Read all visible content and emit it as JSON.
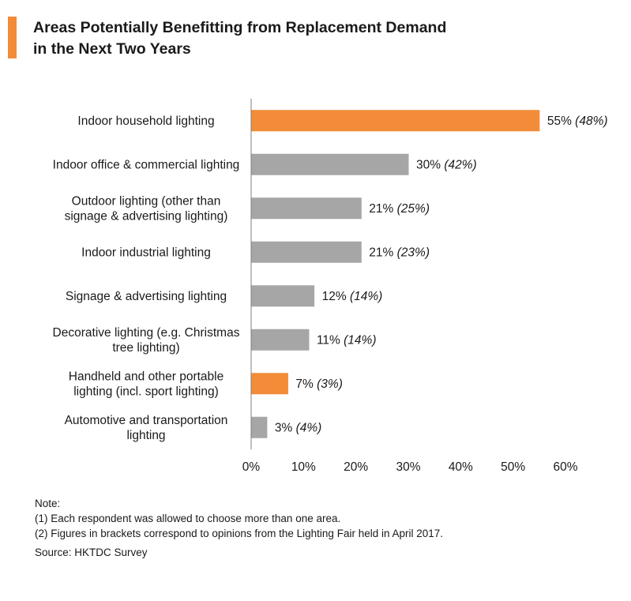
{
  "header": {
    "title_line1": "Areas Potentially Benefitting from Replacement Demand",
    "title_line2": "in the Next Two Years",
    "accent_color": "#f28c38"
  },
  "chart_data": {
    "type": "bar",
    "orientation": "horizontal",
    "categories": [
      [
        "Indoor household lighting"
      ],
      [
        "Indoor office & commercial lighting"
      ],
      [
        "Outdoor lighting (other than",
        "signage & advertising lighting)"
      ],
      [
        "Indoor industrial lighting"
      ],
      [
        "Signage & advertising lighting"
      ],
      [
        "Decorative lighting (e.g. Christmas",
        "tree lighting)"
      ],
      [
        "Handheld and other portable",
        "lighting (incl. sport lighting)"
      ],
      [
        "Automotive and transportation",
        "lighting"
      ]
    ],
    "values": [
      55,
      30,
      21,
      21,
      12,
      11,
      7,
      3
    ],
    "bracket_values": [
      48,
      42,
      25,
      23,
      14,
      14,
      3,
      4
    ],
    "value_labels": [
      "55%",
      "30%",
      "21%",
      "21%",
      "12%",
      "11%",
      "7%",
      "3%"
    ],
    "bracket_labels": [
      "(48%)",
      "(42%)",
      "(25%)",
      "(23%)",
      "(14%)",
      "(14%)",
      "(3%)",
      "(4%)"
    ],
    "highlighted": [
      true,
      false,
      false,
      false,
      false,
      false,
      true,
      false
    ],
    "colors": {
      "highlight": "#f28c38",
      "default": "#a6a6a6",
      "axis": "#7f7f7f"
    },
    "xlim": [
      0,
      60
    ],
    "xticks": [
      0,
      10,
      20,
      30,
      40,
      50,
      60
    ],
    "xtick_labels": [
      "0%",
      "10%",
      "20%",
      "30%",
      "40%",
      "50%",
      "60%"
    ],
    "grid": false,
    "legend": "none"
  },
  "notes": {
    "heading": "Note:",
    "note1": "(1) Each respondent was allowed to choose more than one area.",
    "note2": "(2) Figures in brackets correspond to opinions from the Lighting Fair held in April 2017.",
    "source": "Source: HKTDC Survey"
  }
}
